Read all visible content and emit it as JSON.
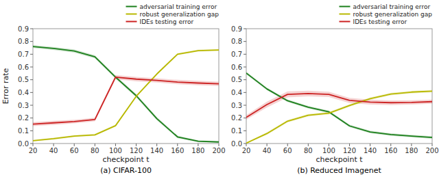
{
  "chart_data": [
    {
      "type": "line",
      "title": "(a) CIFAR-100",
      "x_label": "checkpoint t",
      "y_label": "Error rate",
      "x": [
        20,
        40,
        60,
        80,
        100,
        120,
        140,
        160,
        180,
        200
      ],
      "series": [
        {
          "name": "adversarial training error",
          "color": "#1a7e1a",
          "values": [
            0.76,
            0.745,
            0.725,
            0.68,
            0.52,
            0.375,
            0.195,
            0.052,
            0.018,
            0.012
          ],
          "lower": [
            0.748,
            0.733,
            0.712,
            0.667,
            0.507,
            0.362,
            0.182,
            0.042,
            0.01,
            0.006
          ],
          "upper": [
            0.772,
            0.757,
            0.738,
            0.693,
            0.533,
            0.388,
            0.208,
            0.062,
            0.026,
            0.018
          ]
        },
        {
          "name": "robust generalization gap",
          "color": "#b8b800",
          "values": [
            0.022,
            0.038,
            0.058,
            0.068,
            0.14,
            0.37,
            0.545,
            0.7,
            0.728,
            0.733
          ],
          "lower": [
            0.016,
            0.03,
            0.05,
            0.06,
            0.132,
            0.362,
            0.537,
            0.692,
            0.72,
            0.725
          ],
          "upper": [
            0.028,
            0.046,
            0.066,
            0.076,
            0.148,
            0.378,
            0.553,
            0.708,
            0.736,
            0.741
          ]
        },
        {
          "name": "IDEs testing error",
          "color": "#cc2222",
          "values": [
            0.152,
            0.162,
            0.172,
            0.188,
            0.52,
            0.505,
            0.495,
            0.482,
            0.474,
            0.468
          ],
          "lower": [
            0.136,
            0.146,
            0.158,
            0.174,
            0.503,
            0.488,
            0.478,
            0.465,
            0.457,
            0.451
          ],
          "upper": [
            0.168,
            0.178,
            0.186,
            0.202,
            0.537,
            0.522,
            0.512,
            0.499,
            0.491,
            0.485
          ]
        }
      ],
      "xlim": [
        20,
        200
      ],
      "xticks": [
        20,
        40,
        60,
        80,
        100,
        120,
        140,
        160,
        180,
        200
      ],
      "ylim": [
        0.0,
        0.9
      ],
      "yticks": [
        {
          "value": 0.0,
          "label": "0.0"
        },
        0.1,
        0.2,
        0.3,
        0.4,
        0.5,
        0.6,
        0.7,
        0.8,
        0.9
      ],
      "grid": false,
      "legend": "upper right"
    },
    {
      "type": "line",
      "title": "(b) Reduced Imagenet",
      "x_label": "checkpoint t",
      "x": [
        20,
        40,
        60,
        80,
        100,
        120,
        140,
        160,
        180,
        200
      ],
      "series": [
        {
          "name": "adversarial training error",
          "color": "#1a7e1a",
          "values": [
            0.552,
            0.428,
            0.335,
            0.285,
            0.248,
            0.138,
            0.09,
            0.07,
            0.058,
            0.048
          ],
          "lower": [
            0.542,
            0.418,
            0.325,
            0.275,
            0.238,
            0.128,
            0.08,
            0.06,
            0.048,
            0.038
          ],
          "upper": [
            0.562,
            0.438,
            0.345,
            0.295,
            0.258,
            0.148,
            0.1,
            0.08,
            0.068,
            0.058
          ]
        },
        {
          "name": "robust generalization gap",
          "color": "#b8b800",
          "values": [
            0.003,
            0.078,
            0.175,
            0.222,
            0.238,
            0.298,
            0.352,
            0.388,
            0.403,
            0.41
          ],
          "lower": [
            0.0,
            0.068,
            0.165,
            0.212,
            0.228,
            0.288,
            0.342,
            0.378,
            0.393,
            0.4
          ],
          "upper": [
            0.008,
            0.088,
            0.185,
            0.232,
            0.248,
            0.308,
            0.362,
            0.398,
            0.413,
            0.42
          ]
        },
        {
          "name": "IDEs testing error",
          "color": "#cc2222",
          "values": [
            0.205,
            0.305,
            0.385,
            0.392,
            0.385,
            0.338,
            0.325,
            0.32,
            0.322,
            0.328
          ],
          "lower": [
            0.188,
            0.282,
            0.362,
            0.37,
            0.364,
            0.318,
            0.306,
            0.302,
            0.305,
            0.312
          ],
          "upper": [
            0.222,
            0.328,
            0.408,
            0.414,
            0.406,
            0.358,
            0.344,
            0.338,
            0.339,
            0.344
          ]
        }
      ],
      "xlim": [
        20,
        200
      ],
      "xticks": [
        20,
        40,
        60,
        80,
        100,
        120,
        140,
        160,
        180,
        200
      ],
      "ylim": [
        0.0,
        0.9
      ],
      "yticks": [
        {
          "value": 0.0,
          "label": "0.0"
        },
        0.1,
        0.2,
        0.3,
        0.4,
        0.5,
        0.6,
        0.7,
        0.8,
        0.9
      ],
      "grid": false,
      "legend": "upper right"
    }
  ]
}
